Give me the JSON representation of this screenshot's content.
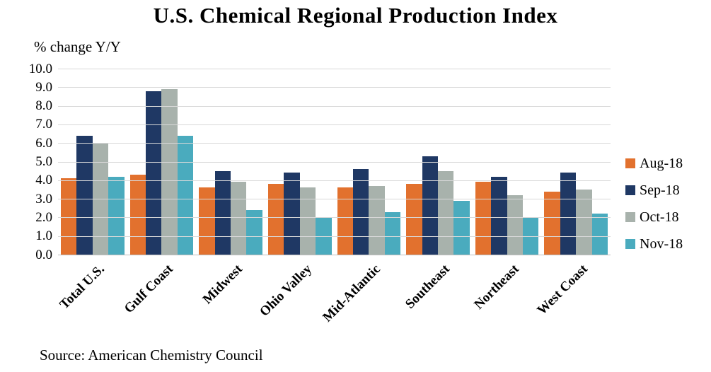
{
  "chart": {
    "title": "U.S. Chemical Regional Production Index",
    "axis_note": "% change Y/Y",
    "source": "Source: American Chemistry Council"
  },
  "chart_data": {
    "type": "bar",
    "title": "U.S. Chemical Regional Production Index",
    "ylabel": "% change Y/Y",
    "xlabel": "",
    "categories": [
      "Total U.S.",
      "Gulf Coast",
      "Midwest",
      "Ohio Valley",
      "Mid-Atlantic",
      "Southeast",
      "Northeast",
      "West Coast"
    ],
    "series": [
      {
        "name": "Aug-18",
        "color": "#E2712E",
        "values": [
          4.1,
          4.3,
          3.6,
          3.8,
          3.6,
          3.8,
          3.9,
          3.4
        ]
      },
      {
        "name": "Sep-18",
        "color": "#1F3864",
        "values": [
          6.4,
          8.8,
          4.5,
          4.4,
          4.6,
          5.3,
          4.2,
          4.4
        ]
      },
      {
        "name": "Oct-18",
        "color": "#A8B2AC",
        "values": [
          6.0,
          8.9,
          3.9,
          3.6,
          3.7,
          4.5,
          3.2,
          3.5
        ]
      },
      {
        "name": "Nov-18",
        "color": "#4AABBE",
        "values": [
          4.2,
          6.4,
          2.4,
          2.0,
          2.3,
          2.9,
          2.0,
          2.2
        ]
      }
    ],
    "ylim": [
      0.0,
      10.0
    ],
    "ytick_step": 1.0,
    "ytick_labels": [
      "0.0",
      "1.0",
      "2.0",
      "3.0",
      "4.0",
      "5.0",
      "6.0",
      "7.0",
      "8.0",
      "9.0",
      "10.0"
    ],
    "grid": "horizontal",
    "legend_position": "right",
    "source": "Source: American Chemistry Council"
  },
  "colors": {
    "background": "#FFFFFF",
    "gridline": "#D9D9D9",
    "axis_line": "#BFBFBF",
    "text": "#000000",
    "aug_18": "#E2712E",
    "sep_18": "#1F3864",
    "oct_18": "#A8B2AC",
    "nov_18": "#4AABBE"
  }
}
